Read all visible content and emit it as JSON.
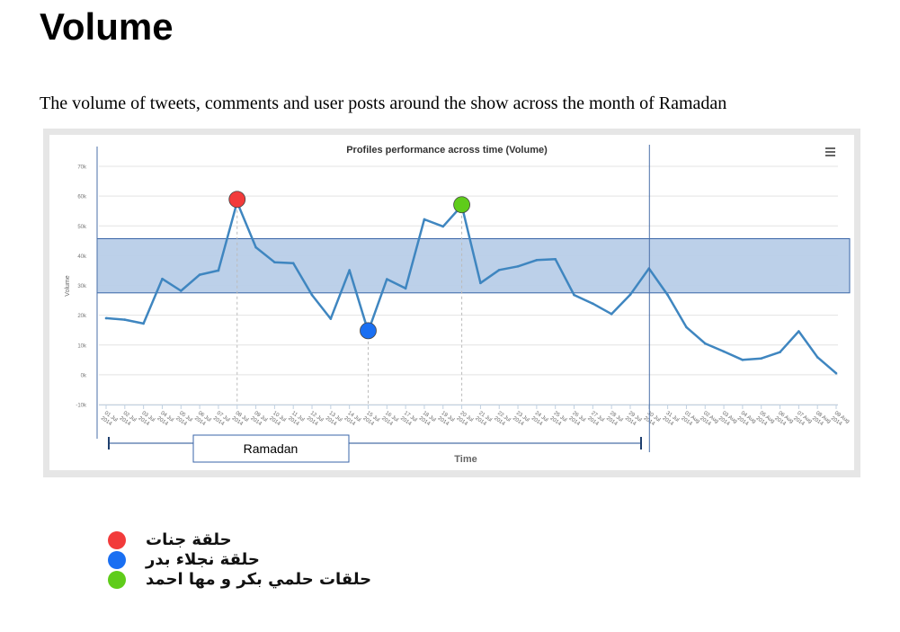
{
  "page": {
    "title": "Volume",
    "subtitle": "The volume of tweets, comments and user posts around the show across the month of Ramadan"
  },
  "chart_data": {
    "type": "line",
    "title": "Profiles performance across time (Volume)",
    "xlabel": "Time",
    "ylabel": "Volume",
    "menu_icon": "hamburger-menu-icon",
    "ylim": [
      -10000,
      70000
    ],
    "y_ticks": [
      -10000,
      0,
      10000,
      20000,
      30000,
      40000,
      50000,
      60000,
      70000
    ],
    "y_tick_labels": [
      "-10k",
      "0k",
      "10k",
      "20k",
      "30k",
      "40k",
      "50k",
      "60k",
      "70k"
    ],
    "grid": true,
    "categories": [
      "01 Jul 2014",
      "02 Jul 2014",
      "03 Jul 2014",
      "04 Jul 2014",
      "05 Jul 2014",
      "06 Jul 2014",
      "07 Jul 2014",
      "08 Jul 2014",
      "09 Jul 2014",
      "10 Jul 2014",
      "11 Jul 2014",
      "12 Jul 2014",
      "13 Jul 2014",
      "14 Jul 2014",
      "15 Jul 2014",
      "16 Jul 2014",
      "17 Jul 2014",
      "18 Jul 2014",
      "19 Jul 2014",
      "20 Jul 2014",
      "21 Jul 2014",
      "22 Jul 2014",
      "23 Jul 2014",
      "24 Jul 2014",
      "25 Jul 2014",
      "26 Jul 2014",
      "27 Jul 2014",
      "28 Jul 2014",
      "29 Jul 2014",
      "30 Jul 2014",
      "31 Jul 2014",
      "01 Aug 2014",
      "02 Aug 2014",
      "03 Aug 2014",
      "04 Aug 2014",
      "05 Aug 2014",
      "06 Aug 2014",
      "07 Aug 2014",
      "08 Aug 2014",
      "09 Aug 2014"
    ],
    "series": [
      {
        "values": [
          19000,
          18500,
          17200,
          32200,
          28200,
          33600,
          35000,
          58000,
          42800,
          37800,
          37500,
          26800,
          18800,
          35100,
          14500,
          32100,
          29000,
          52200,
          49800,
          56800,
          30800,
          35200,
          36400,
          38500,
          38800,
          26800,
          23900,
          20400,
          26900,
          35700,
          26800,
          16000,
          10500,
          7800,
          5000,
          5500,
          7600,
          14600,
          5900,
          500
        ],
        "color": "#3f86c0"
      }
    ],
    "band": {
      "y_from": 27500,
      "y_to": 45700,
      "color": "#b8cde8"
    },
    "highlights": [
      {
        "category": "08 Jul 2014",
        "value": 58900,
        "color": "#f23b3b"
      },
      {
        "category": "15 Jul 2014",
        "value": 14800,
        "color": "#1a6ff2"
      },
      {
        "category": "20 Jul 2014",
        "value": 57100,
        "color": "#5fcc1a"
      }
    ],
    "period": {
      "label": "Ramadan",
      "from": "01 Jul 2014",
      "to": "30 Jul 2014",
      "marker_category": "30 Jul 2014"
    }
  },
  "legend": [
    {
      "label": "حلقة جنات",
      "color": "#f23b3b"
    },
    {
      "label": "حلقة نجلاء بدر",
      "color": "#1a6ff2"
    },
    {
      "label": "حلقات حلمي بكر و مها احمد",
      "color": "#5fcc1a"
    }
  ]
}
